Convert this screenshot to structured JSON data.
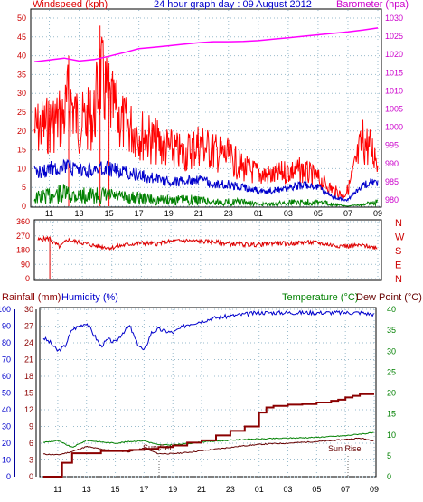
{
  "colors": {
    "wind": "#ff0000",
    "wind_avg": "#0000cc",
    "wind_low": "#008000",
    "barometer": "#ff00ff",
    "direction": "#dd0000",
    "rain": "#8b0000",
    "humidity": "#0000cc",
    "temperature": "#008000",
    "dewpoint": "#660000",
    "axis_blue": "#000099",
    "grid": "#99bbcc"
  },
  "chart_data": [
    {
      "type": "line",
      "title": "24 hour graph day : 09 August 2012",
      "left_label": "Windspeed (kph)",
      "right_label": "Barometer (hpa)",
      "x_ticks": [
        "11",
        "13",
        "15",
        "17",
        "19",
        "21",
        "23",
        "01",
        "03",
        "05",
        "07",
        "09"
      ],
      "y_left_ticks": [
        "0",
        "5",
        "10",
        "15",
        "20",
        "25",
        "30",
        "35",
        "40",
        "45",
        "50"
      ],
      "y_left_range": [
        0,
        50
      ],
      "y_right_ticks": [
        "980",
        "985",
        "990",
        "995",
        "1000",
        "1005",
        "1010",
        "1015",
        "1020",
        "1025",
        "1030"
      ],
      "y_right_range": [
        980,
        1030
      ],
      "series": [
        {
          "key": "gust",
          "x": [
            10,
            11,
            12,
            12.3,
            13,
            14,
            14.4,
            15,
            16,
            17,
            18,
            19,
            20,
            21,
            22,
            23,
            24,
            25,
            26,
            27,
            28,
            29,
            30,
            30.7,
            31,
            32,
            33
          ],
          "values": [
            28,
            30,
            33,
            40,
            30,
            33,
            48,
            38,
            30,
            27,
            24,
            21,
            19,
            23,
            20,
            18,
            14,
            12,
            11,
            13,
            13,
            10,
            6,
            4,
            6,
            24,
            18
          ]
        },
        {
          "key": "avg",
          "x": [
            10,
            11,
            12,
            13,
            14,
            15,
            16,
            17,
            18,
            19,
            20,
            21,
            22,
            23,
            24,
            25,
            26,
            27,
            28,
            29,
            30,
            31,
            32,
            33
          ],
          "values": [
            11,
            12,
            13,
            11,
            12,
            12,
            11,
            10,
            9,
            8,
            8,
            9,
            7,
            7,
            6,
            5,
            5,
            6,
            7,
            6,
            3,
            2,
            7,
            8
          ]
        },
        {
          "key": "low",
          "x": [
            10,
            11,
            12,
            13,
            14,
            15,
            16,
            17,
            18,
            19,
            20,
            21,
            22,
            23,
            24,
            25,
            26,
            27,
            28,
            29,
            30,
            31,
            32,
            33
          ],
          "values": [
            4,
            5,
            6,
            5,
            5,
            5,
            4,
            4,
            3,
            3,
            3,
            3,
            2,
            2,
            2,
            1,
            1,
            2,
            2,
            2,
            1,
            0,
            1,
            2
          ]
        },
        {
          "key": "barometer",
          "x": [
            10,
            11,
            12,
            13,
            14,
            15,
            16,
            17,
            18,
            19,
            20,
            21,
            22,
            23,
            24,
            25,
            26,
            27,
            28,
            29,
            30,
            31,
            32,
            33
          ],
          "values": [
            1018,
            1018.5,
            1019,
            1018.2,
            1018.6,
            1019.5,
            1020.5,
            1021.6,
            1022,
            1022.4,
            1022.8,
            1023.2,
            1023.5,
            1023.5,
            1023.6,
            1023.8,
            1024.2,
            1024.6,
            1025,
            1025.4,
            1025.8,
            1026.2,
            1026.7,
            1027.3
          ]
        }
      ]
    },
    {
      "type": "line",
      "y_ticks": [
        "360",
        "270",
        "180",
        "90",
        "0"
      ],
      "y_range": [
        0,
        360
      ],
      "compass": [
        "N",
        "W",
        "S",
        "E",
        "N"
      ],
      "x_ticks": [
        "11",
        "13",
        "15",
        "17",
        "19",
        "21",
        "23",
        "01",
        "03",
        "05",
        "07",
        "09"
      ],
      "series": [
        {
          "key": "direction",
          "x": [
            10,
            10.8,
            11,
            11.5,
            12,
            13,
            14,
            15,
            16,
            17,
            18,
            19,
            20,
            21,
            22,
            23,
            24,
            25,
            26,
            27,
            28,
            29,
            30,
            31,
            32,
            33
          ],
          "values": [
            245,
            255,
            230,
            200,
            245,
            225,
            205,
            195,
            215,
            225,
            220,
            235,
            240,
            235,
            230,
            220,
            215,
            215,
            225,
            220,
            230,
            225,
            210,
            205,
            210,
            195
          ]
        }
      ]
    },
    {
      "type": "line",
      "left_label": "Rainfall (mm)",
      "left_label2": "Humidity (%)",
      "right_label": "Temperature (°C)",
      "right_label2": "Dew Point (°C)",
      "annotations": [
        "Sun Set",
        "Sun Rise"
      ],
      "x_ticks": [
        "11",
        "13",
        "15",
        "17",
        "19",
        "21",
        "23",
        "01",
        "03",
        "05",
        "07",
        "09"
      ],
      "y_hum_ticks": [
        "0",
        "10",
        "20",
        "30",
        "40",
        "50",
        "60",
        "70",
        "80",
        "90",
        "100"
      ],
      "y_hum_range": [
        0,
        100
      ],
      "y_rain_ticks": [
        "0",
        "3",
        "6",
        "9",
        "12",
        "15",
        "18",
        "21",
        "24",
        "27",
        "30"
      ],
      "y_rain_range": [
        0,
        30
      ],
      "y_temp_ticks": [
        "0",
        "5",
        "10",
        "15",
        "20",
        "25",
        "30",
        "35",
        "40"
      ],
      "y_temp_range": [
        0,
        40
      ],
      "series": [
        {
          "key": "humidity",
          "x": [
            10,
            10.5,
            11,
            11.5,
            12,
            13,
            13.5,
            14,
            14.5,
            15,
            15.5,
            16,
            16.5,
            17,
            17.5,
            18,
            19,
            20,
            21,
            22,
            23,
            24,
            25,
            26,
            27,
            28,
            29,
            30,
            31,
            32,
            33
          ],
          "values": [
            83,
            80,
            75,
            78,
            88,
            92,
            85,
            78,
            82,
            80,
            86,
            90,
            80,
            75,
            86,
            88,
            86,
            91,
            93,
            95,
            96,
            97,
            98,
            98,
            98,
            98,
            98,
            98,
            98,
            98,
            97
          ]
        },
        {
          "key": "rain",
          "x": [
            10,
            11,
            11.3,
            12,
            14,
            16,
            17,
            18,
            19,
            20,
            21,
            22,
            23,
            24,
            25,
            25.5,
            26,
            27,
            28,
            29,
            30,
            30.5,
            31,
            31.5,
            32,
            33
          ],
          "values": [
            0,
            0,
            2.5,
            4.2,
            4.6,
            4.8,
            5.0,
            5.3,
            5.6,
            6.1,
            6.5,
            7.4,
            8.2,
            9.0,
            11.5,
            12.4,
            12.7,
            12.9,
            13.0,
            13.3,
            13.6,
            13.8,
            14.2,
            14.5,
            14.8,
            14.8
          ]
        },
        {
          "key": "temperature",
          "x": [
            10,
            11,
            12,
            13,
            14,
            15,
            16,
            17,
            18,
            19,
            20,
            21,
            22,
            23,
            24,
            25,
            26,
            27,
            28,
            29,
            30,
            31,
            32,
            33
          ],
          "values": [
            8.2,
            8.6,
            7.0,
            8.7,
            8.3,
            8.0,
            8.4,
            8.6,
            7.6,
            7.6,
            7.9,
            8.3,
            8.5,
            8.7,
            8.9,
            9.0,
            9.1,
            9.2,
            9.3,
            9.4,
            9.6,
            9.8,
            10.2,
            10.5
          ]
        },
        {
          "key": "dewpoint",
          "x": [
            10,
            11,
            12,
            13,
            14,
            15,
            16,
            17,
            18,
            19,
            20,
            21,
            22,
            23,
            24,
            25,
            26,
            27,
            28,
            29,
            30,
            31,
            32,
            33
          ],
          "values": [
            5.4,
            5.2,
            6.0,
            7.2,
            6.6,
            6.2,
            6.0,
            6.8,
            5.5,
            5.5,
            5.8,
            6.2,
            6.6,
            7.0,
            7.4,
            7.7,
            7.9,
            8.0,
            8.2,
            8.4,
            8.6,
            8.9,
            9.2,
            8.6
          ]
        }
      ]
    }
  ]
}
